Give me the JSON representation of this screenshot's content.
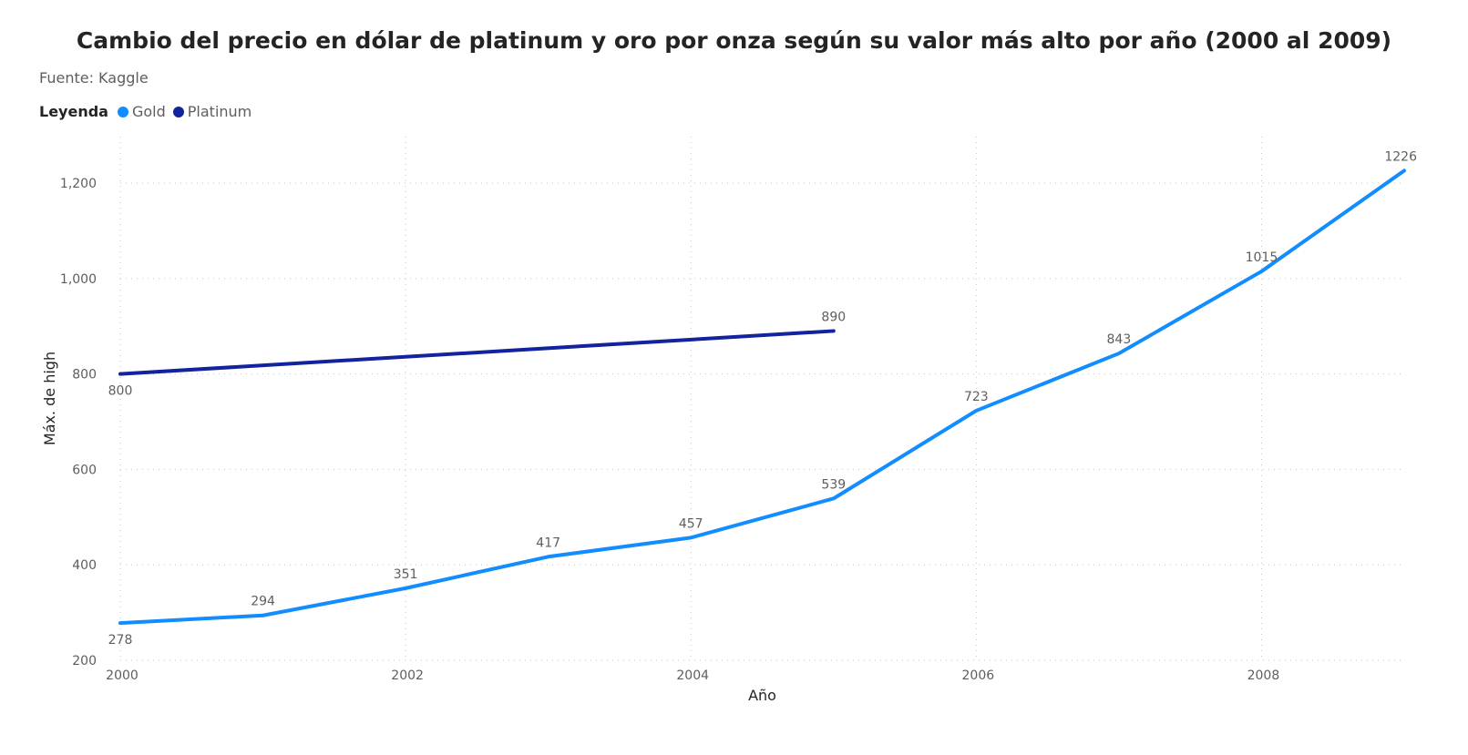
{
  "chart_data": {
    "type": "line",
    "title": "Cambio del precio en dólar de platinum y oro por onza según su valor más alto por año (2000 al 2009)",
    "subtitle": "Fuente: Kaggle",
    "legend_title": "Leyenda",
    "legend_position": "top-left",
    "xlabel": "Año",
    "ylabel": "Máx. de high",
    "xlim": [
      2000,
      2009
    ],
    "ylim": [
      200,
      1250
    ],
    "x_ticks": [
      2000,
      2002,
      2004,
      2006,
      2008
    ],
    "x_tick_labels": [
      "2000",
      "2002",
      "2004",
      "2006",
      "2008"
    ],
    "y_ticks": [
      200,
      400,
      600,
      800,
      1000,
      1200
    ],
    "y_tick_labels": [
      "200",
      "400",
      "600",
      "800",
      "1,000",
      "1,200"
    ],
    "grid": true,
    "series": [
      {
        "name": "Gold",
        "color": "#118DFF",
        "x": [
          2000,
          2001,
          2002,
          2003,
          2004,
          2005,
          2006,
          2007,
          2008,
          2009
        ],
        "values": [
          278,
          294,
          351,
          417,
          457,
          539,
          723,
          843,
          1015,
          1226
        ],
        "labels": [
          "278",
          "294",
          "351",
          "417",
          "457",
          "539",
          "723",
          "843",
          "1015",
          "1226"
        ]
      },
      {
        "name": "Platinum",
        "color": "#12239E",
        "x": [
          2000,
          2005
        ],
        "values": [
          800,
          890
        ],
        "labels": [
          "800",
          "890"
        ]
      }
    ]
  }
}
